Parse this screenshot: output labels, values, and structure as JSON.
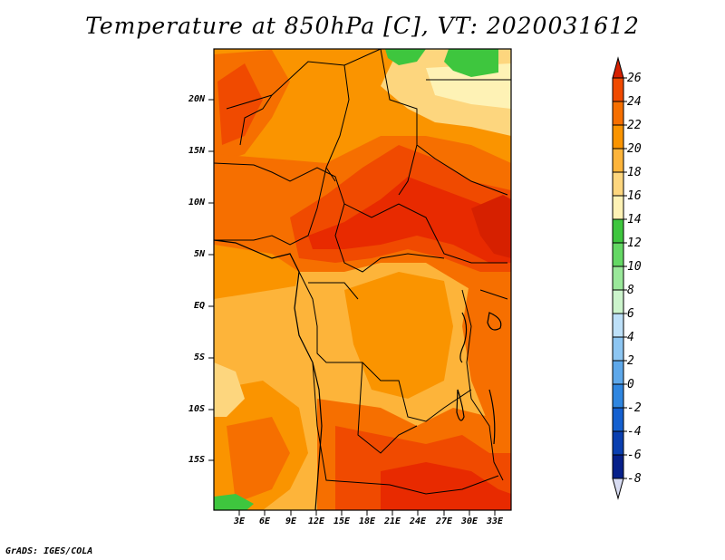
{
  "title": "Temperature at 850hPa [C], VT: 2020031612",
  "credit": "GrADS: IGES/COLA",
  "lat_labels": [
    "20N",
    "15N",
    "10N",
    "5N",
    "EQ",
    "5S",
    "10S",
    "15S"
  ],
  "lon_labels": [
    "3E",
    "6E",
    "9E",
    "12E",
    "15E",
    "18E",
    "21E",
    "24E",
    "27E",
    "30E",
    "33E"
  ],
  "colorbar": {
    "labels": [
      "26",
      "24",
      "22",
      "20",
      "18",
      "16",
      "14",
      "12",
      "10",
      "8",
      "6",
      "4",
      "2",
      "0",
      "-2",
      "-4",
      "-6",
      "-8"
    ],
    "colors": [
      "#e82a00",
      "#f04a00",
      "#f66f00",
      "#fa9400",
      "#fdb43a",
      "#fdd67e",
      "#fef2b5",
      "#3ec63e",
      "#64d864",
      "#9ae89a",
      "#ccf4cc",
      "#bde0f8",
      "#8dc6f2",
      "#5ea8ea",
      "#2f86e0",
      "#1460d0",
      "#0a3fb0",
      "#06208a"
    ],
    "top_color": "#d62000",
    "bottom_color": "#d8dcf2"
  },
  "map_colors": {
    "c26": "#d62000",
    "c24": "#e82a00",
    "c22": "#f04a00",
    "c20": "#f66f00",
    "c18": "#fa9400",
    "c16": "#fdb43a",
    "c14": "#fdd67e",
    "c12": "#fef2b5",
    "green": "#3ec63e"
  }
}
